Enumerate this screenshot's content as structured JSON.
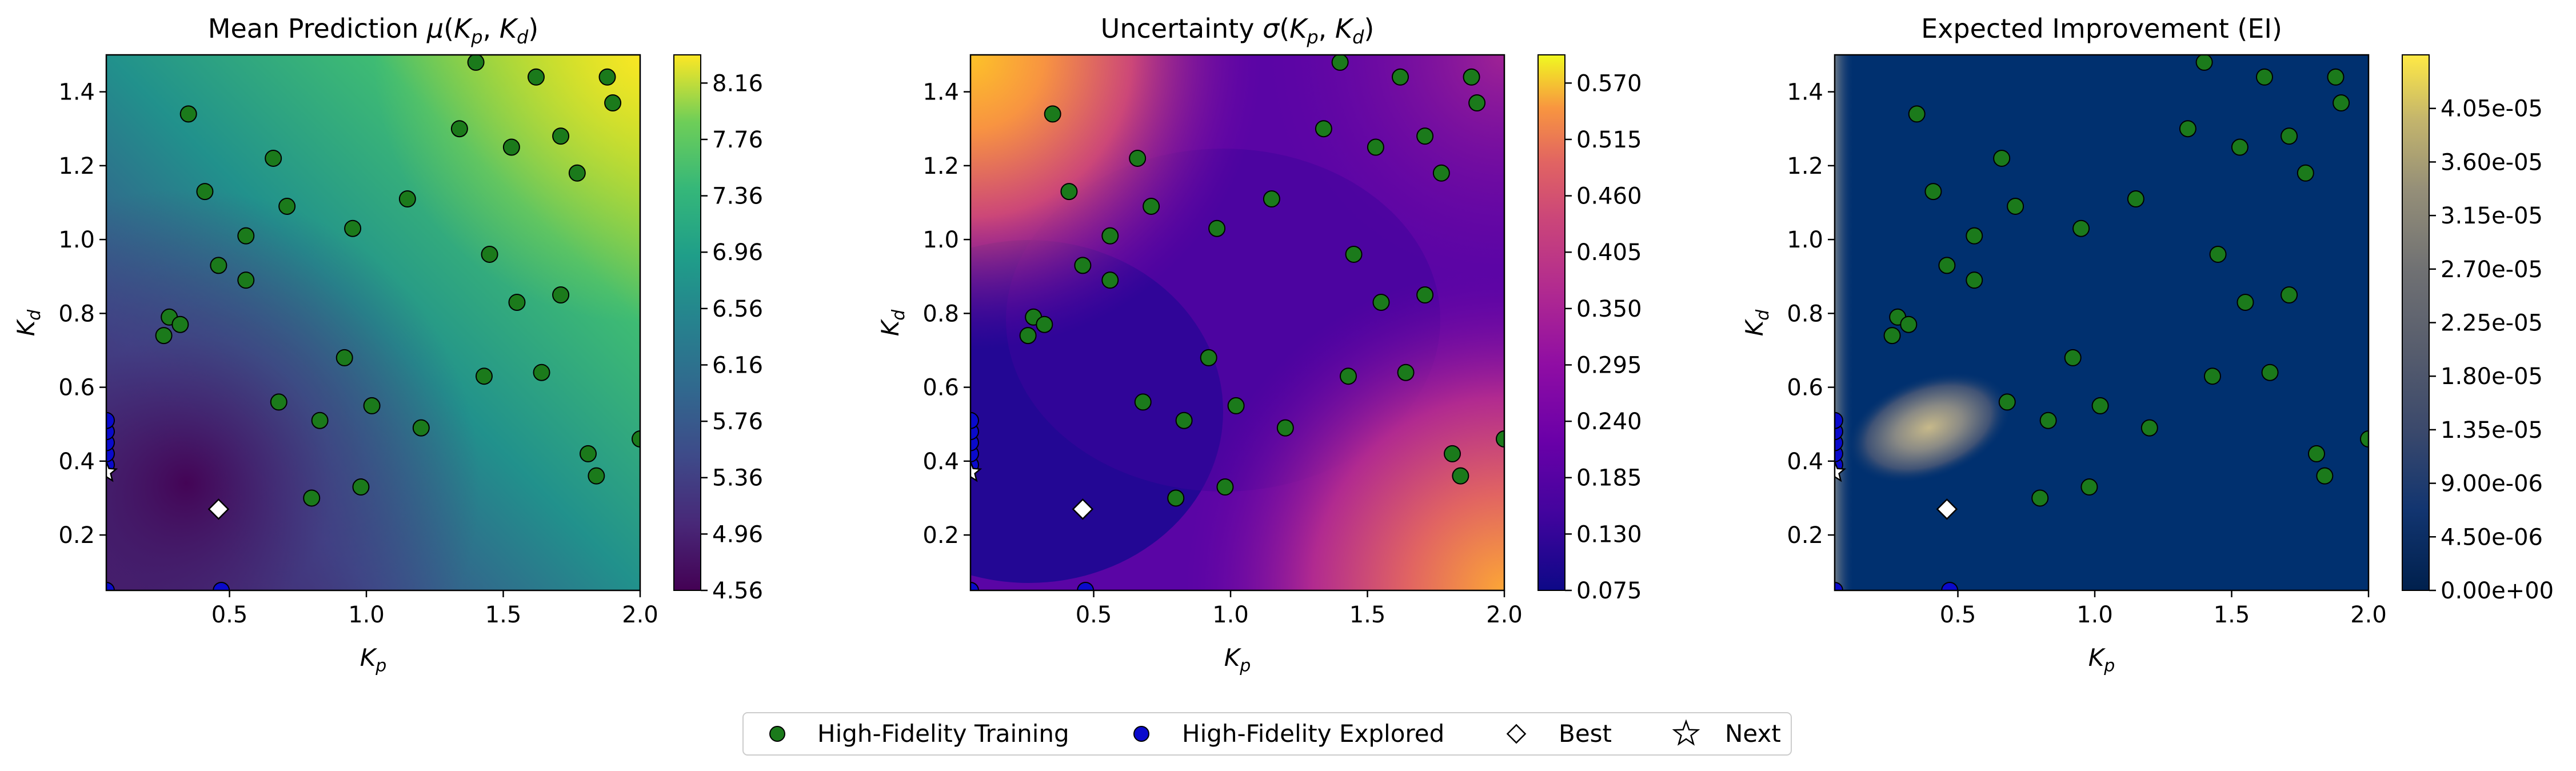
{
  "chart_data": [
    {
      "type": "heatmap",
      "title": "Mean Prediction μ(K_p, K_d)",
      "title_parts": {
        "prefix": "Mean Prediction ",
        "mu": "μ",
        "open": "(",
        "k1": "K",
        "s1": "p",
        "comma": ", ",
        "k2": "K",
        "s2": "d",
        "close": ")"
      },
      "xlabel": {
        "base": "K",
        "sub": "p"
      },
      "ylabel": {
        "base": "K",
        "sub": "d"
      },
      "xlim": [
        0.05,
        2.0
      ],
      "ylim": [
        0.05,
        1.5
      ],
      "xticks": [
        "0.5",
        "1.0",
        "1.5",
        "2.0"
      ],
      "yticks": [
        "0.2",
        "0.4",
        "0.6",
        "0.8",
        "1.0",
        "1.2",
        "1.4"
      ],
      "colormap": "viridis",
      "colorbar_range": [
        4.56,
        8.36
      ],
      "colorbar_ticks": [
        "4.56",
        "4.96",
        "5.36",
        "5.76",
        "6.16",
        "6.56",
        "6.96",
        "7.36",
        "7.76",
        "8.16"
      ]
    },
    {
      "type": "heatmap",
      "title": "Uncertainty σ(K_p, K_d)",
      "title_parts": {
        "prefix": "Uncertainty ",
        "mu": "σ",
        "open": "(",
        "k1": "K",
        "s1": "p",
        "comma": ", ",
        "k2": "K",
        "s2": "d",
        "close": ")"
      },
      "xlabel": {
        "base": "K",
        "sub": "p"
      },
      "ylabel": {
        "base": "K",
        "sub": "d"
      },
      "xlim": [
        0.05,
        2.0
      ],
      "ylim": [
        0.05,
        1.5
      ],
      "xticks": [
        "0.5",
        "1.0",
        "1.5",
        "2.0"
      ],
      "yticks": [
        "0.2",
        "0.4",
        "0.6",
        "0.8",
        "1.0",
        "1.2",
        "1.4"
      ],
      "colormap": "plasma",
      "colorbar_range": [
        0.075,
        0.5975
      ],
      "colorbar_ticks": [
        "0.075",
        "0.130",
        "0.185",
        "0.240",
        "0.295",
        "0.350",
        "0.405",
        "0.460",
        "0.515",
        "0.570"
      ]
    },
    {
      "type": "heatmap",
      "title": "Expected Improvement (EI)",
      "xlabel": {
        "base": "K",
        "sub": "p"
      },
      "ylabel": {
        "base": "K",
        "sub": "d"
      },
      "xlim": [
        0.05,
        2.0
      ],
      "ylim": [
        0.05,
        1.5
      ],
      "xticks": [
        "0.5",
        "1.0",
        "1.5",
        "2.0"
      ],
      "yticks": [
        "0.2",
        "0.4",
        "0.6",
        "0.8",
        "1.0",
        "1.2",
        "1.4"
      ],
      "colormap": "cividis",
      "colorbar_range": [
        0.0,
        4.5e-05
      ],
      "colorbar_ticks": [
        "0.00e+00",
        "4.50e-06",
        "9.00e-06",
        "1.35e-05",
        "1.80e-05",
        "2.25e-05",
        "2.70e-05",
        "3.15e-05",
        "3.60e-05",
        "4.05e-05"
      ]
    }
  ],
  "points": {
    "high_fidelity_training": [
      [
        0.35,
        1.34
      ],
      [
        0.41,
        1.13
      ],
      [
        0.66,
        1.22
      ],
      [
        0.71,
        1.09
      ],
      [
        0.56,
        1.01
      ],
      [
        0.46,
        0.93
      ],
      [
        0.56,
        0.89
      ],
      [
        0.95,
        1.03
      ],
      [
        1.15,
        1.11
      ],
      [
        1.4,
        1.48
      ],
      [
        1.34,
        1.3
      ],
      [
        1.62,
        1.44
      ],
      [
        1.53,
        1.25
      ],
      [
        1.71,
        1.28
      ],
      [
        1.77,
        1.18
      ],
      [
        1.88,
        1.44
      ],
      [
        1.9,
        1.37
      ],
      [
        1.45,
        0.96
      ],
      [
        1.55,
        0.83
      ],
      [
        1.71,
        0.85
      ],
      [
        0.28,
        0.79
      ],
      [
        0.32,
        0.77
      ],
      [
        0.26,
        0.74
      ],
      [
        0.92,
        0.68
      ],
      [
        0.68,
        0.56
      ],
      [
        0.83,
        0.51
      ],
      [
        1.02,
        0.55
      ],
      [
        1.2,
        0.49
      ],
      [
        1.43,
        0.63
      ],
      [
        1.64,
        0.64
      ],
      [
        1.81,
        0.42
      ],
      [
        1.84,
        0.36
      ],
      [
        0.8,
        0.3
      ],
      [
        0.98,
        0.33
      ],
      [
        2.0,
        0.46
      ]
    ],
    "high_fidelity_explored": [
      [
        0.05,
        0.39
      ],
      [
        0.05,
        0.42
      ],
      [
        0.05,
        0.45
      ],
      [
        0.05,
        0.48
      ],
      [
        0.05,
        0.51
      ],
      [
        0.05,
        0.05
      ],
      [
        0.47,
        0.05
      ]
    ],
    "best": [
      0.46,
      0.27
    ],
    "next": [
      0.05,
      0.37
    ]
  },
  "legend": {
    "position": "bottom-center",
    "items": [
      {
        "label": "High-Fidelity Training",
        "marker": "circle",
        "color": "#1b7a1b"
      },
      {
        "label": "High-Fidelity Explored",
        "marker": "circle",
        "color": "#0a0acc"
      },
      {
        "label": "Best",
        "marker": "diamond",
        "color": "#ffffff"
      },
      {
        "label": "Next",
        "marker": "star",
        "color": "#ffffff"
      }
    ]
  }
}
